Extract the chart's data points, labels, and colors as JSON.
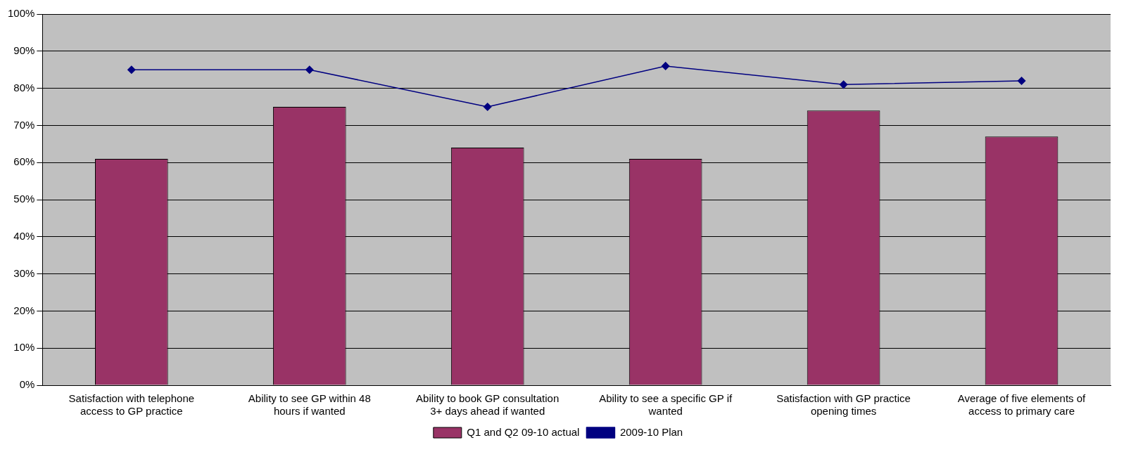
{
  "chart_data": {
    "type": "bar",
    "categories": [
      "Satisfaction with telephone access to GP practice",
      "Ability to see GP within 48 hours if wanted",
      "Ability to book GP consultation 3+ days ahead if wanted",
      "Ability to see a specific GP if wanted",
      "Satisfaction with GP practice opening times",
      "Average of five elements of access to primary care"
    ],
    "series": [
      {
        "name": "Q1 and Q2 09-10 actual",
        "color": "#993366",
        "values": [
          61,
          75,
          64,
          61,
          74,
          67
        ]
      },
      {
        "name": "2009-10 Plan",
        "type": "line",
        "color": "#000080",
        "values": [
          85,
          85,
          75,
          86,
          81,
          82
        ]
      }
    ],
    "ylim": [
      0,
      100
    ],
    "yticks": [
      {
        "value": 0,
        "label": "0%"
      },
      {
        "value": 10,
        "label": "10%"
      },
      {
        "value": 20,
        "label": "20%"
      },
      {
        "value": 30,
        "label": "30%"
      },
      {
        "value": 40,
        "label": "40%"
      },
      {
        "value": 50,
        "label": "50%"
      },
      {
        "value": 60,
        "label": "60%"
      },
      {
        "value": 70,
        "label": "70%"
      },
      {
        "value": 80,
        "label": "80%"
      },
      {
        "value": 90,
        "label": "90%"
      },
      {
        "value": 100,
        "label": "100%"
      }
    ],
    "grid": "y",
    "legend": "bottom",
    "marker": "diamond",
    "line_style": "solid"
  }
}
